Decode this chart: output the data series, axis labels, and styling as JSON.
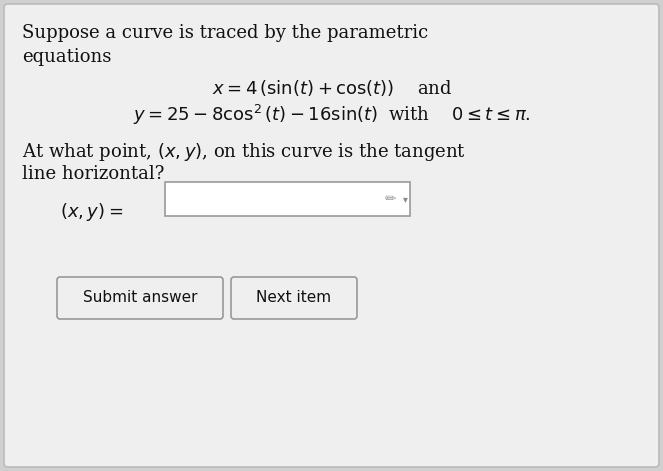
{
  "bg_color": "#d0d0d0",
  "card_color": "#efefef",
  "text_color": "#111111",
  "line1": "Suppose a curve is traced by the parametric",
  "line2": "equations",
  "eq1": "$x = 4\\,(\\sin(t) + \\cos(t))\\quad$ and",
  "eq2": "$y = 25 - 8\\cos^2(t) - 16\\sin(t)\\;$ with $\\quad 0 \\leq t \\leq \\pi.$",
  "question_line1": "At what point, $(x, y)$, on this curve is the tangent",
  "question_line2": "line horizontal?",
  "answer_label": "$(x, y) =$",
  "btn1": "Submit answer",
  "btn2": "Next item",
  "font_size_body": 13.0,
  "font_size_eq": 13.0,
  "font_size_btn": 11.0
}
